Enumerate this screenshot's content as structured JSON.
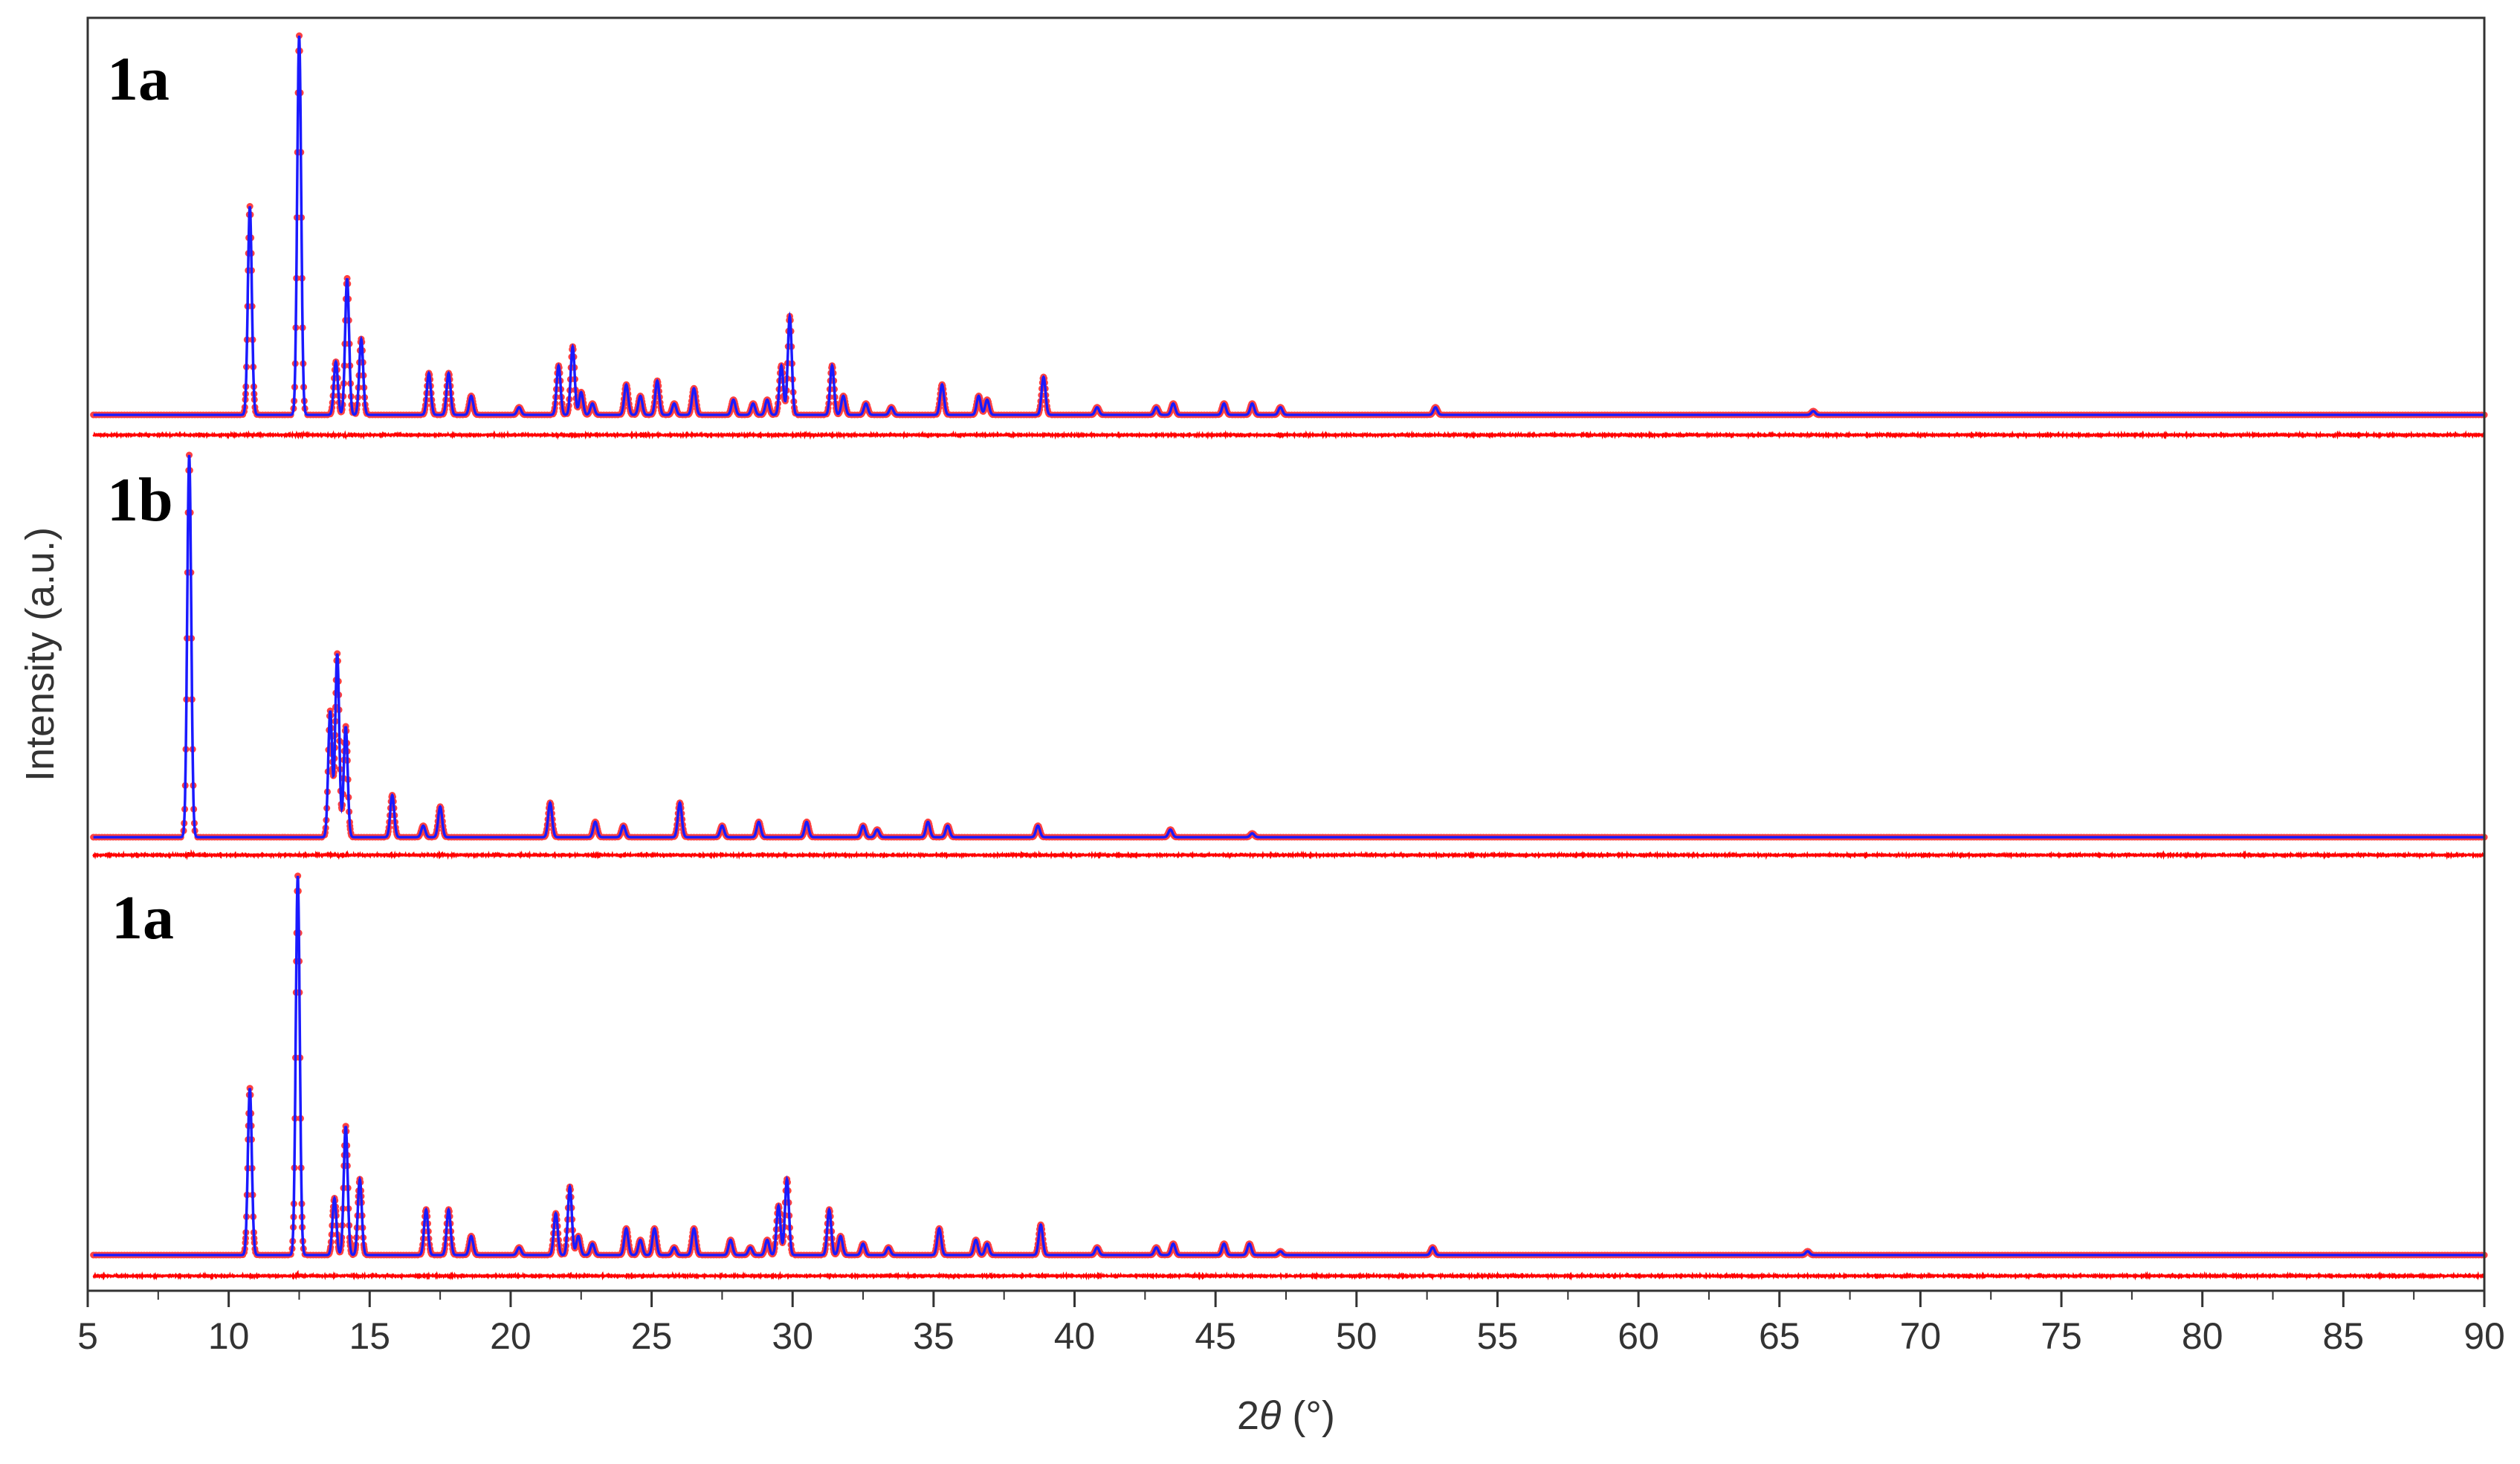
{
  "chart_data": {
    "type": "line",
    "description_free": true,
    "xlabel_prefix": "2",
    "xlabel_var": "θ",
    "xlabel_unit": " (°)",
    "ylabel": "Intensity (a.u.)",
    "xlim": [
      5,
      90
    ],
    "xticks": [
      5,
      10,
      15,
      20,
      25,
      30,
      35,
      40,
      45,
      50,
      55,
      60,
      65,
      70,
      75,
      80,
      85,
      90
    ],
    "colors": {
      "observed": "#ff2020",
      "calculated": "#1a1aff",
      "difference": "#ff0000",
      "frame": "#333333"
    },
    "panels": [
      {
        "label": "1a",
        "peak_width": 0.07,
        "peaks": [
          [
            10.75,
            0.55
          ],
          [
            12.5,
            1.0
          ],
          [
            13.8,
            0.14
          ],
          [
            14.2,
            0.36
          ],
          [
            14.7,
            0.2
          ],
          [
            17.1,
            0.11
          ],
          [
            17.8,
            0.11
          ],
          [
            18.6,
            0.05
          ],
          [
            20.3,
            0.02
          ],
          [
            21.7,
            0.13
          ],
          [
            22.2,
            0.18
          ],
          [
            22.5,
            0.06
          ],
          [
            22.9,
            0.03
          ],
          [
            24.1,
            0.08
          ],
          [
            24.6,
            0.05
          ],
          [
            25.2,
            0.09
          ],
          [
            25.8,
            0.03
          ],
          [
            26.5,
            0.07
          ],
          [
            27.9,
            0.04
          ],
          [
            28.6,
            0.03
          ],
          [
            29.1,
            0.04
          ],
          [
            29.6,
            0.13
          ],
          [
            29.9,
            0.26
          ],
          [
            31.4,
            0.13
          ],
          [
            31.8,
            0.05
          ],
          [
            32.6,
            0.03
          ],
          [
            33.5,
            0.02
          ],
          [
            35.3,
            0.08
          ],
          [
            36.6,
            0.05
          ],
          [
            36.9,
            0.04
          ],
          [
            38.9,
            0.1
          ],
          [
            40.8,
            0.02
          ],
          [
            42.9,
            0.02
          ],
          [
            43.5,
            0.03
          ],
          [
            45.3,
            0.03
          ],
          [
            46.3,
            0.03
          ],
          [
            47.3,
            0.02
          ],
          [
            52.8,
            0.02
          ],
          [
            66.2,
            0.01
          ]
        ]
      },
      {
        "label": "1b",
        "peak_width": 0.07,
        "peaks": [
          [
            8.6,
            1.0
          ],
          [
            13.6,
            0.33
          ],
          [
            13.85,
            0.48
          ],
          [
            14.15,
            0.29
          ],
          [
            15.8,
            0.11
          ],
          [
            16.9,
            0.03
          ],
          [
            17.5,
            0.08
          ],
          [
            21.4,
            0.09
          ],
          [
            23.0,
            0.04
          ],
          [
            24.0,
            0.03
          ],
          [
            26.0,
            0.09
          ],
          [
            27.5,
            0.03
          ],
          [
            28.8,
            0.04
          ],
          [
            30.5,
            0.04
          ],
          [
            32.5,
            0.03
          ],
          [
            33.0,
            0.02
          ],
          [
            34.8,
            0.04
          ],
          [
            35.5,
            0.03
          ],
          [
            38.7,
            0.03
          ],
          [
            43.4,
            0.02
          ],
          [
            46.3,
            0.01
          ]
        ]
      },
      {
        "label": "1a",
        "peak_width": 0.07,
        "peaks": [
          [
            10.75,
            0.44
          ],
          [
            12.45,
            1.0
          ],
          [
            13.75,
            0.15
          ],
          [
            14.15,
            0.34
          ],
          [
            14.65,
            0.2
          ],
          [
            17.0,
            0.12
          ],
          [
            17.8,
            0.12
          ],
          [
            18.6,
            0.05
          ],
          [
            20.3,
            0.02
          ],
          [
            21.6,
            0.11
          ],
          [
            22.1,
            0.18
          ],
          [
            22.4,
            0.05
          ],
          [
            22.9,
            0.03
          ],
          [
            24.1,
            0.07
          ],
          [
            24.6,
            0.04
          ],
          [
            25.1,
            0.07
          ],
          [
            25.8,
            0.02
          ],
          [
            26.5,
            0.07
          ],
          [
            27.8,
            0.04
          ],
          [
            28.5,
            0.02
          ],
          [
            29.1,
            0.04
          ],
          [
            29.5,
            0.13
          ],
          [
            29.8,
            0.2
          ],
          [
            31.3,
            0.12
          ],
          [
            31.7,
            0.05
          ],
          [
            32.5,
            0.03
          ],
          [
            33.4,
            0.02
          ],
          [
            35.2,
            0.07
          ],
          [
            36.5,
            0.04
          ],
          [
            36.9,
            0.03
          ],
          [
            38.8,
            0.08
          ],
          [
            40.8,
            0.02
          ],
          [
            42.9,
            0.02
          ],
          [
            43.5,
            0.03
          ],
          [
            45.3,
            0.03
          ],
          [
            46.2,
            0.03
          ],
          [
            47.3,
            0.01
          ],
          [
            52.7,
            0.02
          ],
          [
            66.0,
            0.01
          ]
        ]
      }
    ]
  }
}
